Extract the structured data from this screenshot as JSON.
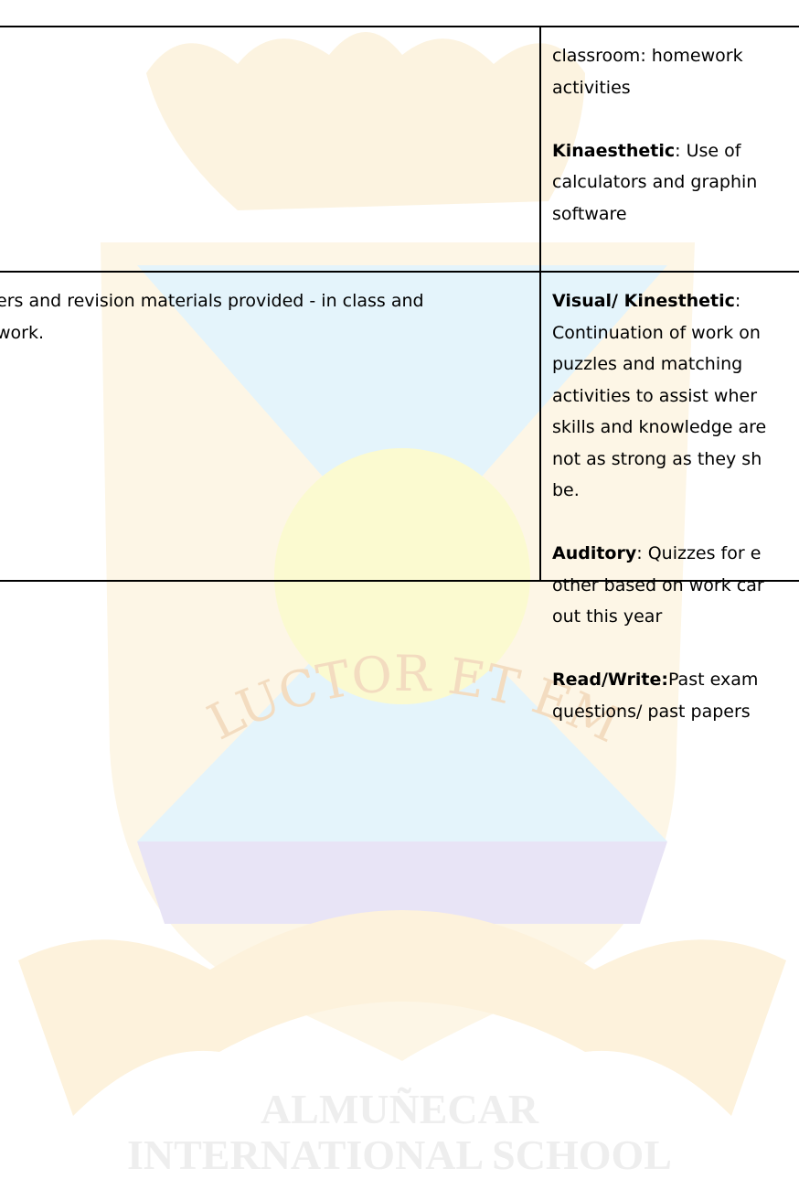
{
  "table": {
    "rows": [
      {
        "cells": [
          {
            "paragraphs": []
          },
          {
            "paragraphs": [
              {
                "label": null,
                "lines": [
                  "classroom: homework",
                  "activities"
                ]
              },
              {
                "label": "Kinaesthetic",
                "lines": [
                  ":  Use of",
                  "calculators and graphin",
                  "software"
                ]
              }
            ]
          }
        ]
      },
      {
        "cells": [
          {
            "paragraphs": [
              {
                "label": null,
                "lines": [
                  "ers and revision materials provided - in class and",
                  "work."
                ]
              }
            ]
          },
          {
            "paragraphs": [
              {
                "label": "Visual/ Kinesthetic",
                "lines": [
                  ":",
                  "Continuation of work on",
                  "puzzles and matching",
                  "activities to assist wher",
                  "skills and knowledge are",
                  "not as strong as they sh",
                  "be."
                ]
              },
              {
                "label": "Auditory",
                "lines": [
                  ": Quizzes for e",
                  "other based on work car",
                  "out this year"
                ]
              },
              {
                "label": "Read/Write:",
                "lines": [
                  "Past exam",
                  "questions/ past papers"
                ]
              }
            ]
          }
        ]
      }
    ]
  },
  "watermark": {
    "motto": "LUCTOR ET EMERGO",
    "school_lines": [
      "ALMUÑECAR",
      "INTERNATIONAL SCHOOL"
    ]
  }
}
